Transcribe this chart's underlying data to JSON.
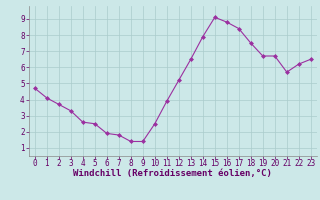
{
  "x": [
    0,
    1,
    2,
    3,
    4,
    5,
    6,
    7,
    8,
    9,
    10,
    11,
    12,
    13,
    14,
    15,
    16,
    17,
    18,
    19,
    20,
    21,
    22,
    23
  ],
  "y": [
    4.7,
    4.1,
    3.7,
    3.3,
    2.6,
    2.5,
    1.9,
    1.8,
    1.4,
    1.4,
    2.5,
    3.9,
    5.2,
    6.5,
    7.9,
    9.1,
    8.8,
    8.4,
    7.5,
    6.7,
    6.7,
    5.7,
    6.2,
    6.5
  ],
  "line_color": "#9b30a0",
  "marker": "D",
  "marker_size": 2,
  "bg_color": "#cce8e8",
  "grid_color": "#aacccc",
  "xlabel": "Windchill (Refroidissement éolien,°C)",
  "xlim": [
    -0.5,
    23.5
  ],
  "ylim": [
    0.5,
    9.8
  ],
  "xticks": [
    0,
    1,
    2,
    3,
    4,
    5,
    6,
    7,
    8,
    9,
    10,
    11,
    12,
    13,
    14,
    15,
    16,
    17,
    18,
    19,
    20,
    21,
    22,
    23
  ],
  "yticks": [
    1,
    2,
    3,
    4,
    5,
    6,
    7,
    8,
    9
  ],
  "xlabel_color": "#660066",
  "tick_color": "#660066",
  "tick_fontsize": 5.5,
  "label_fontsize": 6.5
}
